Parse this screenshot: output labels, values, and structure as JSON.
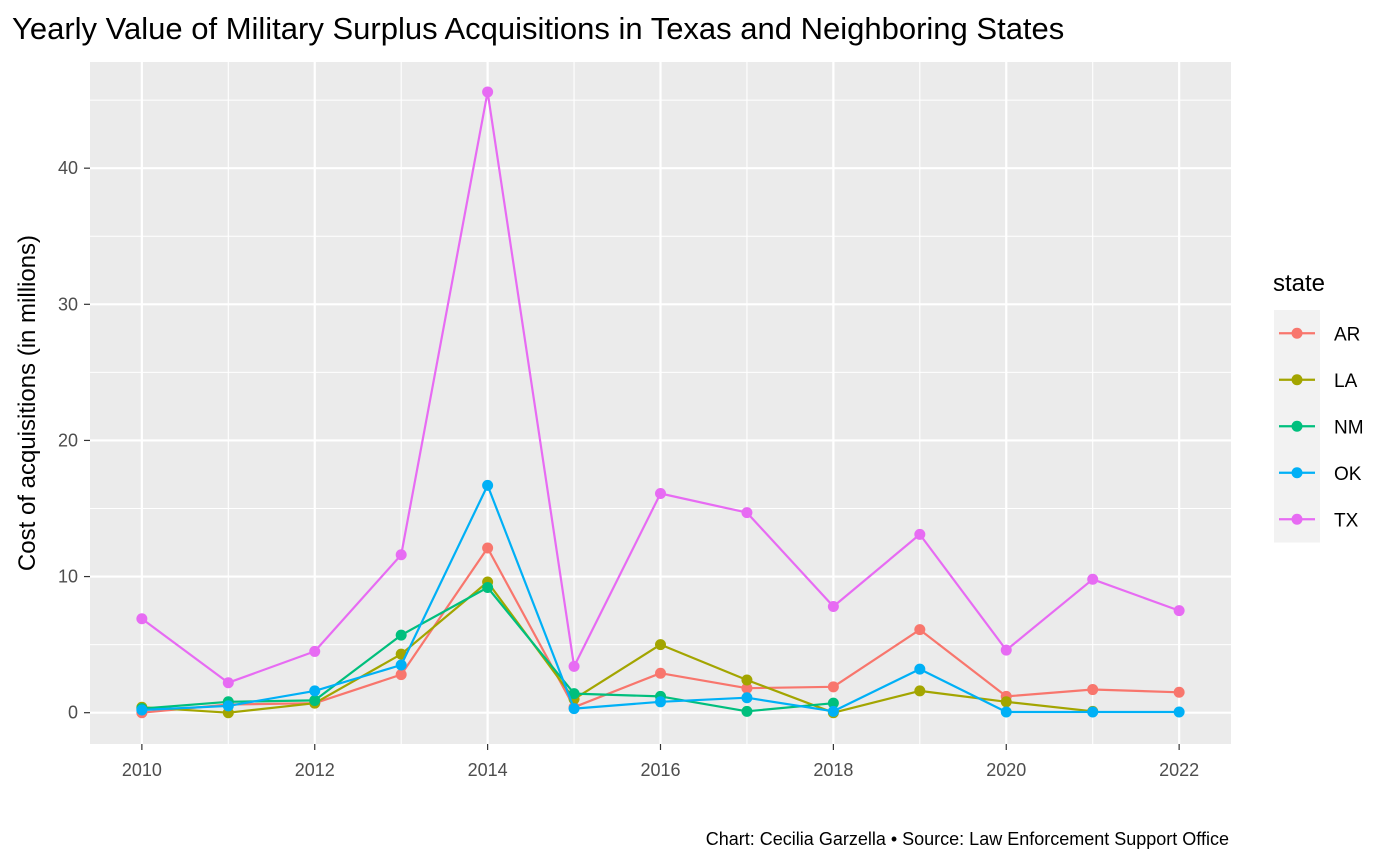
{
  "chart_data": {
    "type": "line",
    "title": "Yearly Value of Military Surplus Acquisitions in Texas and Neighboring States",
    "xlabel": "",
    "ylabel": "Cost of acquisitions (in millions)",
    "caption": "Chart: Cecilia Garzella • Source: Law Enforcement Support Office",
    "xlim": [
      2009.4,
      2022.6
    ],
    "ylim": [
      -2.3,
      47.8
    ],
    "x_ticks": [
      2010,
      2012,
      2014,
      2016,
      2018,
      2020,
      2022
    ],
    "y_ticks": [
      0,
      10,
      20,
      30,
      40
    ],
    "grid": true,
    "legend": {
      "title": "state",
      "position": "right"
    },
    "series": [
      {
        "name": "AR",
        "color": "#F8766D",
        "points": [
          [
            2010,
            0
          ],
          [
            2011,
            0.6
          ],
          [
            2012,
            0.7
          ],
          [
            2013,
            2.8
          ],
          [
            2014,
            12.1
          ],
          [
            2015,
            0.4
          ],
          [
            2016,
            2.9
          ],
          [
            2017,
            1.8
          ],
          [
            2018,
            1.9
          ],
          [
            2019,
            6.1
          ],
          [
            2020,
            1.2
          ],
          [
            2021,
            1.7
          ],
          [
            2022,
            1.5
          ]
        ]
      },
      {
        "name": "LA",
        "color": "#A3A500",
        "points": [
          [
            2010,
            0.4
          ],
          [
            2011,
            0.0
          ],
          [
            2012,
            0.7
          ],
          [
            2013,
            4.3
          ],
          [
            2014,
            9.6
          ],
          [
            2015,
            1.0
          ],
          [
            2016,
            5.0
          ],
          [
            2017,
            2.4
          ],
          [
            2018,
            0.0
          ],
          [
            2019,
            1.6
          ],
          [
            2020,
            0.8
          ],
          [
            2021,
            0.1
          ]
        ]
      },
      {
        "name": "NM",
        "color": "#00BF7D",
        "points": [
          [
            2010,
            0.3
          ],
          [
            2011,
            0.8
          ],
          [
            2012,
            0.9
          ],
          [
            2013,
            5.7
          ],
          [
            2014,
            9.2
          ],
          [
            2015,
            1.4
          ],
          [
            2016,
            1.2
          ],
          [
            2017,
            0.1
          ],
          [
            2018,
            0.7
          ]
        ]
      },
      {
        "name": "OK",
        "color": "#00B0F6",
        "points": [
          [
            2010,
            0.2
          ],
          [
            2011,
            0.5
          ],
          [
            2012,
            1.6
          ],
          [
            2013,
            3.5
          ],
          [
            2014,
            16.7
          ],
          [
            2015,
            0.3
          ],
          [
            2016,
            0.8
          ],
          [
            2017,
            1.1
          ],
          [
            2018,
            0.1
          ],
          [
            2019,
            3.2
          ],
          [
            2020,
            0.05
          ],
          [
            2021,
            0.05
          ],
          [
            2022,
            0.05
          ]
        ]
      },
      {
        "name": "TX",
        "color": "#E76BF3",
        "points": [
          [
            2010,
            6.9
          ],
          [
            2011,
            2.2
          ],
          [
            2012,
            4.5
          ],
          [
            2013,
            11.6
          ],
          [
            2014,
            45.6
          ],
          [
            2015,
            3.4
          ],
          [
            2016,
            16.1
          ],
          [
            2017,
            14.7
          ],
          [
            2018,
            7.8
          ],
          [
            2019,
            13.1
          ],
          [
            2020,
            4.6
          ],
          [
            2021,
            9.8
          ],
          [
            2022,
            7.5
          ]
        ]
      }
    ]
  }
}
